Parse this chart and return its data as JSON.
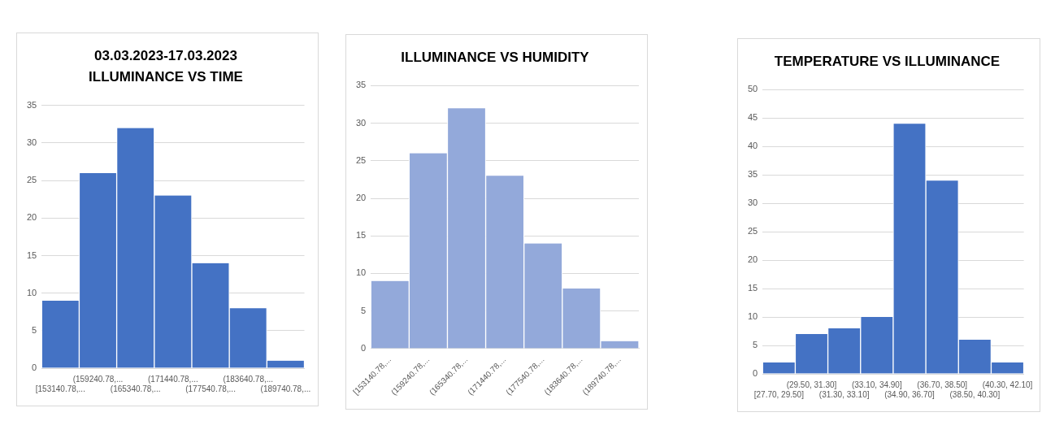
{
  "chart_data": [
    {
      "type": "bar",
      "title": "03.03.2023-17.03.2023",
      "subtitle": "ILLUMINANCE VS TIME",
      "categories": [
        "[153140.78,...",
        "(159240.78,...",
        "(165340.78,...",
        "(171440.78,...",
        "(177540.78,...",
        "(183640.78,...",
        "(189740.78,..."
      ],
      "values": [
        9,
        26,
        32,
        23,
        14,
        8,
        1
      ],
      "color": "#4472c4",
      "ylim": [
        0,
        35
      ],
      "yticks": [
        0,
        5,
        10,
        15,
        20,
        25,
        30,
        35
      ],
      "grid": "y",
      "legend": false
    },
    {
      "type": "bar",
      "title": "ILLUMINANCE VS HUMIDITY",
      "categories": [
        "[153140.78,...",
        "(159240.78,...",
        "(165340.78,...",
        "(171440.78,...",
        "(177540.78,...",
        "(183640.78,...",
        "(189740.78,..."
      ],
      "values": [
        9,
        26,
        32,
        23,
        14,
        8,
        1
      ],
      "color": "#93a9da",
      "ylim": [
        0,
        35
      ],
      "yticks": [
        0,
        5,
        10,
        15,
        20,
        25,
        30,
        35
      ],
      "grid": "y",
      "legend": false
    },
    {
      "type": "bar",
      "title": "TEMPERATURE VS ILLUMINANCE",
      "categories": [
        "[27.70, 29.50]",
        "(29.50, 31.30]",
        "(31.30, 33.10]",
        "(33.10, 34.90]",
        "(34.90, 36.70]",
        "(36.70, 38.50]",
        "(38.50, 40.30]",
        "(40.30, 42.10]"
      ],
      "values": [
        2,
        7,
        8,
        10,
        44,
        34,
        6,
        2
      ],
      "color": "#4472c4",
      "ylim": [
        0,
        50
      ],
      "yticks": [
        0,
        5,
        10,
        15,
        20,
        25,
        30,
        35,
        40,
        45,
        50
      ],
      "grid": "y",
      "legend": false
    }
  ]
}
